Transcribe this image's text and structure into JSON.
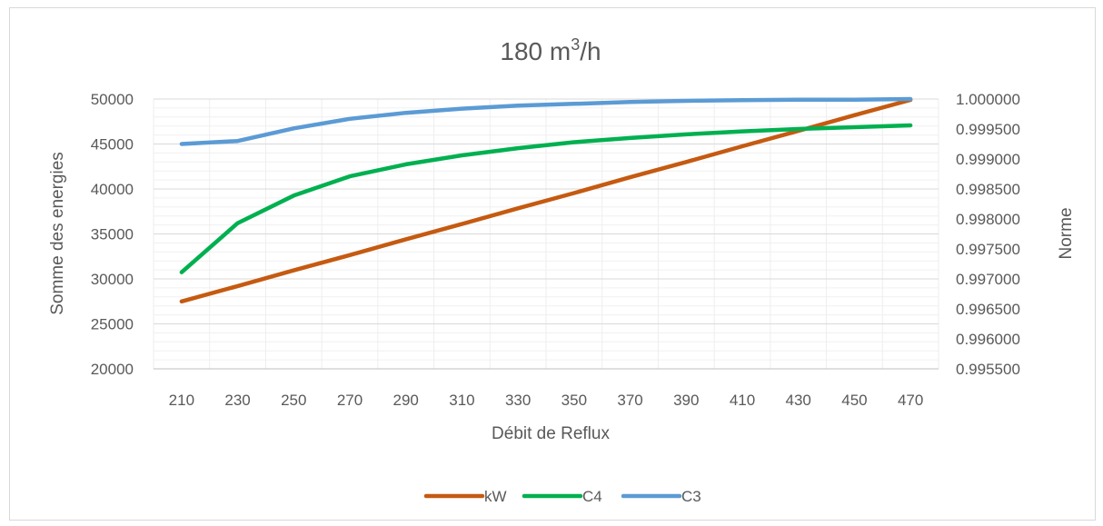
{
  "chart_data": {
    "type": "line",
    "title_main": "180 m",
    "title_sup": "3",
    "title_tail": "/h",
    "xlabel": "Débit de Reflux",
    "ylabel": "Somme des energies",
    "y2label": "Norme",
    "categories": [
      "210",
      "230",
      "250",
      "270",
      "290",
      "310",
      "330",
      "350",
      "370",
      "390",
      "410",
      "430",
      "450",
      "470"
    ],
    "ylim": [
      20000,
      50000
    ],
    "yticks": [
      "20000",
      "25000",
      "30000",
      "35000",
      "40000",
      "45000",
      "50000"
    ],
    "y2lim": [
      0.9955,
      1.0
    ],
    "y2ticks": [
      "0.995500",
      "0.996000",
      "0.996500",
      "0.997000",
      "0.997500",
      "0.998000",
      "0.998500",
      "0.999000",
      "0.999500",
      "1.000000"
    ],
    "grid": true,
    "legend_position": "bottom",
    "series": [
      {
        "name": "kW",
        "axis": "left",
        "color": "#C55A11",
        "values": [
          27500,
          29200,
          30950,
          32650,
          34400,
          36100,
          37850,
          39550,
          41300,
          43000,
          44750,
          46450,
          48200,
          49900
        ]
      },
      {
        "name": "C4",
        "axis": "right",
        "color": "#00B050",
        "values": [
          0.99711,
          0.99793,
          0.99839,
          0.99871,
          0.99891,
          0.99906,
          0.99918,
          0.99928,
          0.99935,
          0.99941,
          0.99946,
          0.9995,
          0.99953,
          0.99956
        ]
      },
      {
        "name": "C3",
        "axis": "right",
        "color": "#5B9BD5",
        "values": [
          0.99925,
          0.9993,
          0.99951,
          0.99967,
          0.99977,
          0.99984,
          0.99989,
          0.99992,
          0.99995,
          0.99997,
          0.99998,
          0.99999,
          0.99999,
          1.0
        ]
      }
    ]
  }
}
